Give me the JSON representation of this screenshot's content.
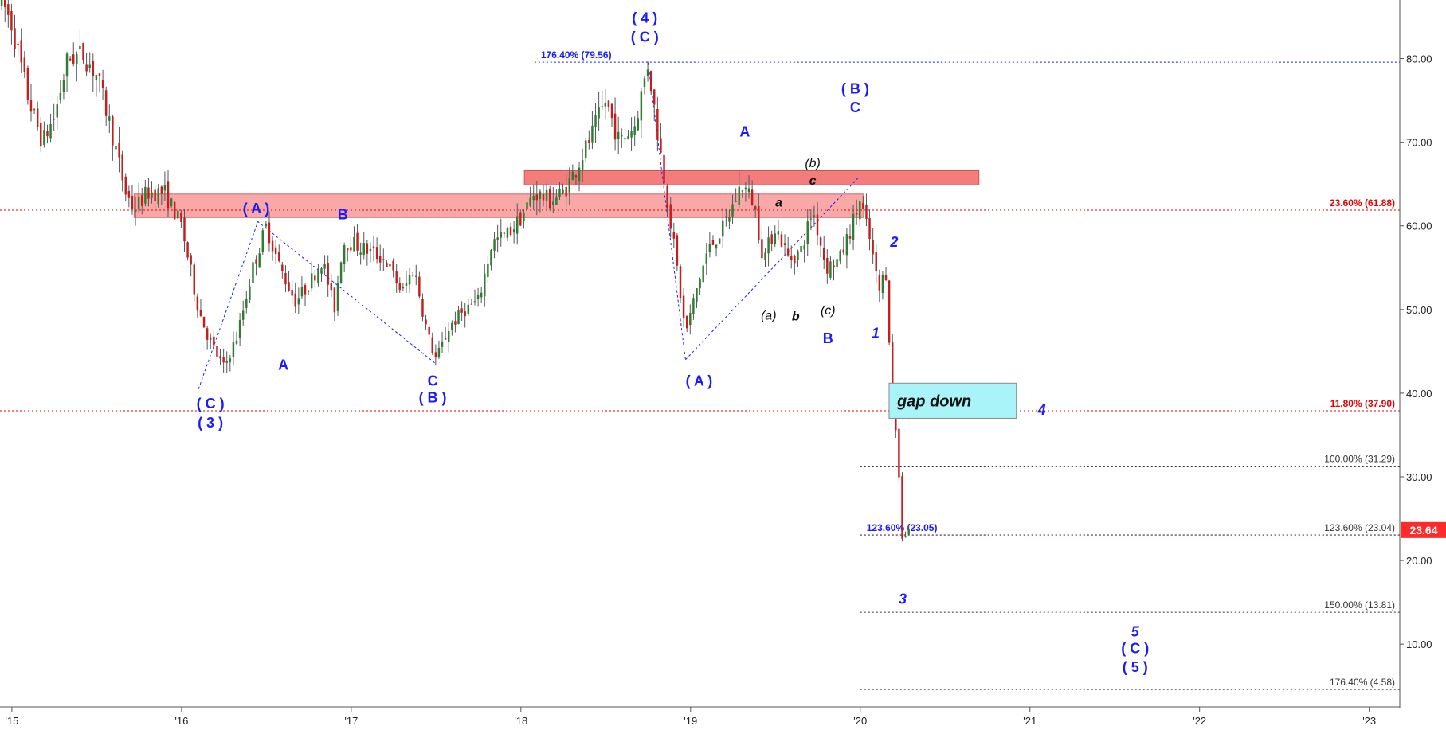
{
  "chart_data": {
    "type": "candlestick",
    "title": "",
    "xlabel": "",
    "ylabel": "",
    "ylim": [
      2.5,
      87
    ],
    "xlim": [
      2014.93,
      2023.18
    ],
    "grid": false,
    "y_ticks": [
      {
        "value": 10,
        "label": "10.00"
      },
      {
        "value": 20,
        "label": "20.00"
      },
      {
        "value": 30,
        "label": "30.00"
      },
      {
        "value": 40,
        "label": "40.00"
      },
      {
        "value": 50,
        "label": "50.00"
      },
      {
        "value": 60,
        "label": "60.00"
      },
      {
        "value": 70,
        "label": "70.00"
      },
      {
        "value": 80,
        "label": "80.00"
      }
    ],
    "x_ticks": [
      {
        "value": 2015,
        "label": "'15"
      },
      {
        "value": 2016,
        "label": "'16"
      },
      {
        "value": 2017,
        "label": "'17"
      },
      {
        "value": 2018,
        "label": "'18"
      },
      {
        "value": 2019,
        "label": "'19"
      },
      {
        "value": 2020,
        "label": "'20"
      },
      {
        "value": 2021,
        "label": "'21"
      },
      {
        "value": 2022,
        "label": "'22"
      },
      {
        "value": 2023,
        "label": "'23"
      }
    ],
    "current_price": {
      "value": 23.64,
      "label": "23.64",
      "color": "#ff2b2b"
    },
    "price_path": [
      [
        2014.94,
        87
      ],
      [
        2015.0,
        84
      ],
      [
        2015.1,
        75
      ],
      [
        2015.18,
        70
      ],
      [
        2015.25,
        73
      ],
      [
        2015.33,
        80
      ],
      [
        2015.42,
        80.5
      ],
      [
        2015.5,
        78
      ],
      [
        2015.58,
        72
      ],
      [
        2015.67,
        64
      ],
      [
        2015.72,
        62
      ],
      [
        2015.8,
        64
      ],
      [
        2015.9,
        64
      ],
      [
        2016.0,
        60
      ],
      [
        2016.1,
        50
      ],
      [
        2016.17,
        46
      ],
      [
        2016.25,
        43
      ],
      [
        2016.33,
        47
      ],
      [
        2016.42,
        55
      ],
      [
        2016.5,
        60
      ],
      [
        2016.58,
        55
      ],
      [
        2016.67,
        51
      ],
      [
        2016.75,
        53
      ],
      [
        2016.83,
        56
      ],
      [
        2016.9,
        50
      ],
      [
        2016.95,
        58
      ],
      [
        2017.0,
        58
      ],
      [
        2017.1,
        57
      ],
      [
        2017.2,
        56
      ],
      [
        2017.3,
        52
      ],
      [
        2017.37,
        55
      ],
      [
        2017.45,
        47
      ],
      [
        2017.5,
        44
      ],
      [
        2017.58,
        48
      ],
      [
        2017.67,
        50
      ],
      [
        2017.75,
        51
      ],
      [
        2017.83,
        58
      ],
      [
        2017.92,
        59
      ],
      [
        2018.0,
        61
      ],
      [
        2018.08,
        64
      ],
      [
        2018.17,
        63
      ],
      [
        2018.25,
        64
      ],
      [
        2018.33,
        67
      ],
      [
        2018.42,
        71
      ],
      [
        2018.5,
        75
      ],
      [
        2018.58,
        70
      ],
      [
        2018.67,
        72
      ],
      [
        2018.75,
        79.5
      ],
      [
        2018.8,
        72
      ],
      [
        2018.85,
        65
      ],
      [
        2018.92,
        55
      ],
      [
        2018.97,
        47
      ],
      [
        2019.03,
        52
      ],
      [
        2019.1,
        57
      ],
      [
        2019.2,
        60
      ],
      [
        2019.3,
        65
      ],
      [
        2019.37,
        63
      ],
      [
        2019.43,
        56
      ],
      [
        2019.5,
        60
      ],
      [
        2019.58,
        56
      ],
      [
        2019.65,
        57
      ],
      [
        2019.72,
        62
      ],
      [
        2019.8,
        55
      ],
      [
        2019.88,
        56
      ],
      [
        2019.95,
        60
      ],
      [
        2020.0,
        63
      ],
      [
        2020.06,
        58
      ],
      [
        2020.11,
        52
      ],
      [
        2020.15,
        55
      ],
      [
        2020.18,
        43
      ],
      [
        2020.2,
        38
      ],
      [
        2020.22,
        33
      ],
      [
        2020.25,
        22
      ],
      [
        2020.28,
        24
      ],
      [
        2020.3,
        23.64
      ]
    ],
    "horizontal_levels": [
      {
        "price": 79.56,
        "label": "176.40% (79.56)",
        "color": "#1a1aff",
        "label_side": "left",
        "from": 2018.08,
        "to": 2023.18
      },
      {
        "price": 61.88,
        "label": "23.60% (61.88)",
        "color": "#e60000",
        "label_side": "right",
        "from": 2014.93,
        "to": 2023.18
      },
      {
        "price": 37.9,
        "label": "11.80% (37.90)",
        "color": "#e60000",
        "label_side": "right",
        "from": 2014.93,
        "to": 2023.18
      },
      {
        "price": 31.29,
        "label": "100.00% (31.29)",
        "color": "#333333",
        "label_side": "right",
        "from": 2020.0,
        "to": 2023.18
      },
      {
        "price": 23.05,
        "label": "123.60% (23.05)",
        "color": "#1a1aff",
        "label_side": "left",
        "from": 2020.0,
        "to": 2023.18
      },
      {
        "price": 23.04,
        "label": "123.60% (23.04)",
        "color": "#333333",
        "label_side": "right",
        "from": 2020.0,
        "to": 2023.18
      },
      {
        "price": 13.81,
        "label": "150.00% (13.81)",
        "color": "#333333",
        "label_side": "right",
        "from": 2020.0,
        "to": 2023.18
      },
      {
        "price": 4.58,
        "label": "176.40% (4.58)",
        "color": "#333333",
        "label_side": "right",
        "from": 2020.0,
        "to": 2023.18
      }
    ],
    "zones": [
      {
        "from": 2015.72,
        "to": 2020.02,
        "low": 61.0,
        "high": 63.8,
        "color": "#f9a3a3"
      },
      {
        "from": 2018.02,
        "to": 2020.7,
        "low": 64.9,
        "high": 66.6,
        "color": "#f27676"
      }
    ],
    "boxes": [
      {
        "from": 2020.17,
        "to": 2020.92,
        "low": 37.0,
        "high": 41.2,
        "color": "#a8f4f8",
        "label": "gap down"
      }
    ],
    "wave_lines": [
      {
        "points": [
          [
            2016.1,
            40.5
          ],
          [
            2016.45,
            60.5
          ],
          [
            2017.5,
            43.5
          ]
        ],
        "color": "#1a1aff"
      },
      {
        "points": [
          [
            2018.75,
            79.5
          ],
          [
            2018.97,
            44
          ]
        ],
        "color": "#1a1aff"
      },
      {
        "points": [
          [
            2018.97,
            44
          ],
          [
            2020.0,
            66
          ]
        ],
        "color": "#1a1aff"
      }
    ],
    "annotations": [
      {
        "text": "( 4 )",
        "x": 2018.73,
        "y": 84.3,
        "color": "#1a1aff",
        "weight": "bold",
        "style": "normal",
        "size": 18
      },
      {
        "text": "( C )",
        "x": 2018.73,
        "y": 82.0,
        "color": "#1a1aff",
        "weight": "bold",
        "style": "normal",
        "size": 18
      },
      {
        "text": "( A )",
        "x": 2016.44,
        "y": 61.5,
        "color": "#1a1aff",
        "weight": "bold",
        "style": "normal",
        "size": 18
      },
      {
        "text": "B",
        "x": 2016.95,
        "y": 60.8,
        "color": "#1a1aff",
        "weight": "bold",
        "style": "normal",
        "size": 18
      },
      {
        "text": "A",
        "x": 2016.6,
        "y": 42.8,
        "color": "#1a1aff",
        "weight": "bold",
        "style": "normal",
        "size": 18
      },
      {
        "text": "( C )",
        "x": 2016.17,
        "y": 38.2,
        "color": "#1a1aff",
        "weight": "bold",
        "style": "normal",
        "size": 18
      },
      {
        "text": "( 3 )",
        "x": 2016.17,
        "y": 35.9,
        "color": "#1a1aff",
        "weight": "bold",
        "style": "normal",
        "size": 18
      },
      {
        "text": "C",
        "x": 2017.48,
        "y": 40.9,
        "color": "#1a1aff",
        "weight": "bold",
        "style": "normal",
        "size": 18
      },
      {
        "text": "( B )",
        "x": 2017.48,
        "y": 38.9,
        "color": "#1a1aff",
        "weight": "bold",
        "style": "normal",
        "size": 18
      },
      {
        "text": "( A )",
        "x": 2019.05,
        "y": 40.9,
        "color": "#1a1aff",
        "weight": "bold",
        "style": "normal",
        "size": 18
      },
      {
        "text": "A",
        "x": 2019.32,
        "y": 70.7,
        "color": "#1a1aff",
        "weight": "bold",
        "style": "normal",
        "size": 18
      },
      {
        "text": "a",
        "x": 2019.52,
        "y": 62.3,
        "color": "#111111",
        "weight": "bold",
        "style": "italic",
        "size": 16
      },
      {
        "text": "(b)",
        "x": 2019.72,
        "y": 67.0,
        "color": "#111111",
        "weight": "normal",
        "style": "italic",
        "size": 16
      },
      {
        "text": "c",
        "x": 2019.72,
        "y": 64.9,
        "color": "#111111",
        "weight": "bold",
        "style": "italic",
        "size": 16
      },
      {
        "text": "( B )",
        "x": 2019.97,
        "y": 75.8,
        "color": "#1a1aff",
        "weight": "bold",
        "style": "normal",
        "size": 18
      },
      {
        "text": "C",
        "x": 2019.97,
        "y": 73.6,
        "color": "#1a1aff",
        "weight": "bold",
        "style": "normal",
        "size": 18
      },
      {
        "text": "(a)",
        "x": 2019.46,
        "y": 48.8,
        "color": "#111111",
        "weight": "normal",
        "style": "italic",
        "size": 16
      },
      {
        "text": "b",
        "x": 2019.62,
        "y": 48.7,
        "color": "#111111",
        "weight": "bold",
        "style": "italic",
        "size": 16
      },
      {
        "text": "(c)",
        "x": 2019.81,
        "y": 49.4,
        "color": "#111111",
        "weight": "normal",
        "style": "italic",
        "size": 16
      },
      {
        "text": "B",
        "x": 2019.81,
        "y": 46.0,
        "color": "#1a1aff",
        "weight": "bold",
        "style": "normal",
        "size": 18
      },
      {
        "text": "1",
        "x": 2020.09,
        "y": 46.6,
        "color": "#1a1aff",
        "weight": "bold",
        "style": "italic",
        "size": 18
      },
      {
        "text": "2",
        "x": 2020.2,
        "y": 57.5,
        "color": "#1a1aff",
        "weight": "bold",
        "style": "italic",
        "size": 18
      },
      {
        "text": "3",
        "x": 2020.25,
        "y": 14.8,
        "color": "#1a1aff",
        "weight": "bold",
        "style": "italic",
        "size": 18
      },
      {
        "text": "4",
        "x": 2021.07,
        "y": 37.4,
        "color": "#1a1aff",
        "weight": "bold",
        "style": "italic",
        "size": 18
      },
      {
        "text": "5",
        "x": 2021.62,
        "y": 10.9,
        "color": "#1a1aff",
        "weight": "bold",
        "style": "italic",
        "size": 18
      },
      {
        "text": "( C )",
        "x": 2021.62,
        "y": 8.9,
        "color": "#1a1aff",
        "weight": "bold",
        "style": "normal",
        "size": 18
      },
      {
        "text": "( 5 )",
        "x": 2021.62,
        "y": 6.7,
        "color": "#1a1aff",
        "weight": "bold",
        "style": "normal",
        "size": 18
      }
    ]
  }
}
